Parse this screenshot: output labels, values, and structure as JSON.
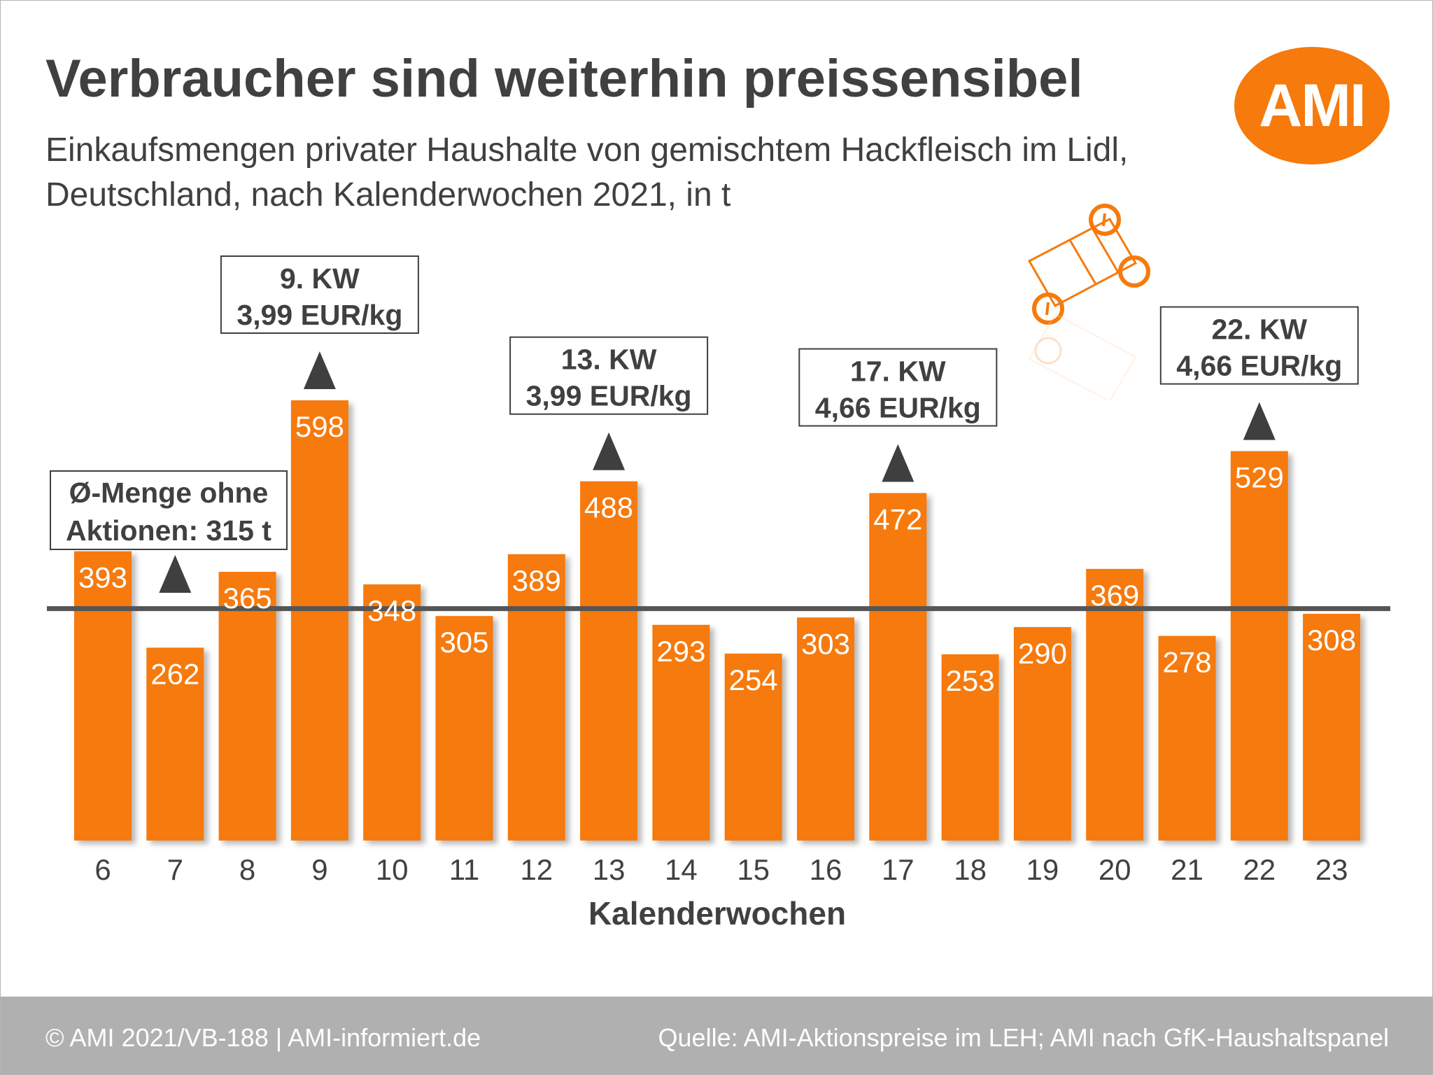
{
  "header": {
    "title": "Verbraucher sind weiterhin preissensibel",
    "subtitle_line1": "Einkaufsmengen privater Haushalte von gemischtem Hackfleisch im Lidl,",
    "subtitle_line2": "Deutschland, nach Kalenderwochen 2021, in t",
    "logo_text": "AMI"
  },
  "footer": {
    "left": "© AMI 2021/VB-188 | AMI-informiert.de",
    "right": "Quelle: AMI-Aktionspreise im LEH; AMI nach GfK-Haushaltspanel"
  },
  "colors": {
    "bar": "#f67a0c",
    "text": "#404040",
    "reference_line": "#555555",
    "footer_bg": "#b0b0b0"
  },
  "icons": [
    "scale-icon",
    "triangle-up-icon"
  ],
  "chart_data": {
    "type": "bar",
    "title": "Verbraucher sind weiterhin preissensibel",
    "subtitle": "Einkaufsmengen privater Haushalte von gemischtem Hackfleisch im Lidl, Deutschland, nach Kalenderwochen 2021, in t",
    "xlabel": "Kalenderwochen",
    "ylabel": "",
    "categories": [
      "6",
      "7",
      "8",
      "9",
      "10",
      "11",
      "12",
      "13",
      "14",
      "15",
      "16",
      "17",
      "18",
      "19",
      "20",
      "21",
      "22",
      "23"
    ],
    "values": [
      393,
      262,
      365,
      598,
      348,
      305,
      389,
      488,
      293,
      254,
      303,
      472,
      253,
      290,
      369,
      278,
      529,
      308
    ],
    "ylim": [
      0,
      598
    ],
    "grid": false,
    "reference_line": {
      "value": 315,
      "label_line1": "Ø-Menge ohne",
      "label_line2": "Aktionen: 315 t",
      "marker_category": "7"
    },
    "annotations": [
      {
        "category": "9",
        "line1": "9. KW",
        "line2": "3,99 EUR/kg"
      },
      {
        "category": "13",
        "line1": "13. KW",
        "line2": "3,99 EUR/kg"
      },
      {
        "category": "17",
        "line1": "17. KW",
        "line2": "4,66 EUR/kg"
      },
      {
        "category": "22",
        "line1": "22. KW",
        "line2": "4,66 EUR/kg"
      }
    ]
  }
}
